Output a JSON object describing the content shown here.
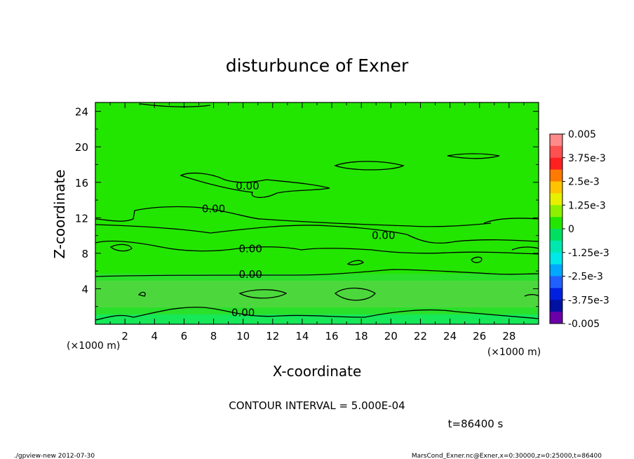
{
  "chart_data": {
    "type": "heatmap",
    "title": "disturbunce of Exner",
    "xlabel": "X-coordinate",
    "ylabel": "Z-coordinate",
    "x_unit_left": "(×1000 m)",
    "x_unit_right": "(×1000 m)",
    "xlim": [
      0,
      30
    ],
    "ylim": [
      0,
      25
    ],
    "x_ticks": [
      2,
      4,
      6,
      8,
      10,
      12,
      14,
      16,
      18,
      20,
      22,
      24,
      26,
      28
    ],
    "y_ticks": [
      4,
      8,
      12,
      16,
      20,
      24
    ],
    "field_level_value": 0,
    "contour_labels": [
      {
        "text": "0.00",
        "x": 10.3,
        "z": 15.6
      },
      {
        "text": "0.00",
        "x": 8.0,
        "z": 13.0
      },
      {
        "text": "0.00",
        "x": 19.5,
        "z": 10.0
      },
      {
        "text": "0.00",
        "x": 10.5,
        "z": 8.5
      },
      {
        "text": "0.00",
        "x": 10.5,
        "z": 5.6
      },
      {
        "text": "0.00",
        "x": 10.0,
        "z": 1.3
      }
    ],
    "colorbar": {
      "labels": [
        "0.005",
        "3.75e-3",
        "2.5e-3",
        "1.25e-3",
        "0",
        "-1.25e-3",
        "-2.5e-3",
        "-3.75e-3",
        "-0.005"
      ],
      "colors": [
        "#ff8a8a",
        "#ff5050",
        "#ff2020",
        "#ff7a00",
        "#ffc400",
        "#e6f000",
        "#8cf000",
        "#23e600",
        "#00e060",
        "#00e8b0",
        "#00e8e8",
        "#00a8ff",
        "#2060ff",
        "#0020e0",
        "#0010a0",
        "#6a00a8"
      ]
    },
    "contour_interval_text": "CONTOUR INTERVAL = 5.000E-04",
    "time_text": "t=86400 s"
  },
  "footer": {
    "left": "./gpview-new 2012-07-30",
    "right": "MarsCond_Exner.nc@Exner,x=0:30000,z=0:25000,t=86400"
  }
}
